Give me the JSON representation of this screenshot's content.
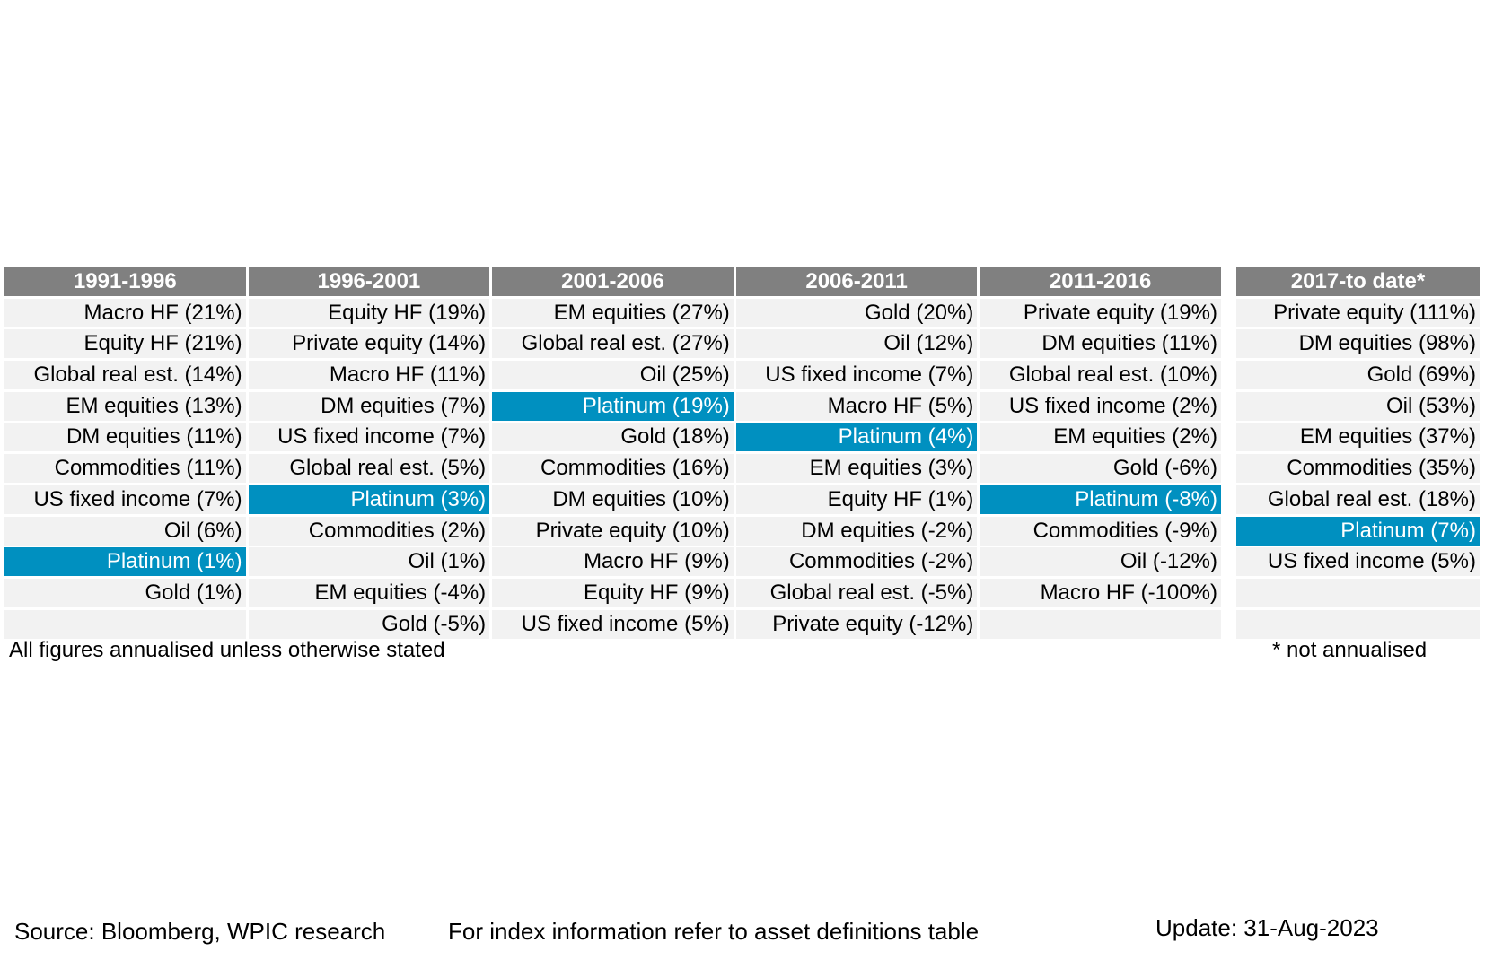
{
  "chart_data": {
    "type": "table",
    "columns": [
      {
        "header": "1991-1996",
        "rows": [
          {
            "asset": "Macro HF",
            "value": 21
          },
          {
            "asset": "Equity HF",
            "value": 21
          },
          {
            "asset": "Global real est.",
            "value": 14
          },
          {
            "asset": "EM equities",
            "value": 13
          },
          {
            "asset": "DM equities",
            "value": 11
          },
          {
            "asset": "Commodities",
            "value": 11
          },
          {
            "asset": "US fixed income",
            "value": 7
          },
          {
            "asset": "Oil",
            "value": 6
          },
          {
            "asset": "Platinum",
            "value": 1,
            "highlight": true
          },
          {
            "asset": "Gold",
            "value": 1
          }
        ]
      },
      {
        "header": "1996-2001",
        "rows": [
          {
            "asset": "Equity HF",
            "value": 19
          },
          {
            "asset": "Private equity",
            "value": 14
          },
          {
            "asset": "Macro HF",
            "value": 11
          },
          {
            "asset": "DM equities",
            "value": 7
          },
          {
            "asset": "US fixed income",
            "value": 7
          },
          {
            "asset": "Global real est.",
            "value": 5
          },
          {
            "asset": "Platinum",
            "value": 3,
            "highlight": true
          },
          {
            "asset": "Commodities",
            "value": 2
          },
          {
            "asset": "Oil",
            "value": 1
          },
          {
            "asset": "EM equities",
            "value": -4
          },
          {
            "asset": "Gold",
            "value": -5
          }
        ]
      },
      {
        "header": "2001-2006",
        "rows": [
          {
            "asset": "EM equities",
            "value": 27
          },
          {
            "asset": "Global real est.",
            "value": 27
          },
          {
            "asset": "Oil",
            "value": 25
          },
          {
            "asset": "Platinum",
            "value": 19,
            "highlight": true
          },
          {
            "asset": "Gold",
            "value": 18
          },
          {
            "asset": "Commodities",
            "value": 16
          },
          {
            "asset": "DM equities",
            "value": 10
          },
          {
            "asset": "Private equity",
            "value": 10
          },
          {
            "asset": "Macro HF",
            "value": 9
          },
          {
            "asset": "Equity HF",
            "value": 9
          },
          {
            "asset": "US fixed income",
            "value": 5
          }
        ]
      },
      {
        "header": "2006-2011",
        "rows": [
          {
            "asset": "Gold",
            "value": 20
          },
          {
            "asset": "Oil",
            "value": 12
          },
          {
            "asset": "US fixed income",
            "value": 7
          },
          {
            "asset": "Macro HF",
            "value": 5
          },
          {
            "asset": "Platinum",
            "value": 4,
            "highlight": true
          },
          {
            "asset": "EM equities",
            "value": 3
          },
          {
            "asset": "Equity HF",
            "value": 1
          },
          {
            "asset": "DM equities",
            "value": -2
          },
          {
            "asset": "Commodities",
            "value": -2
          },
          {
            "asset": "Global real est.",
            "value": -5
          },
          {
            "asset": "Private equity",
            "value": -12
          }
        ]
      },
      {
        "header": "2011-2016",
        "rows": [
          {
            "asset": "Private equity",
            "value": 19
          },
          {
            "asset": "DM equities",
            "value": 11
          },
          {
            "asset": "Global real est.",
            "value": 10
          },
          {
            "asset": "US fixed income",
            "value": 2
          },
          {
            "asset": "EM equities",
            "value": 2
          },
          {
            "asset": "Gold",
            "value": -6
          },
          {
            "asset": "Platinum",
            "value": -8,
            "highlight": true
          },
          {
            "asset": "Commodities",
            "value": -9
          },
          {
            "asset": "Oil",
            "value": -12
          },
          {
            "asset": "Macro HF",
            "value": -100
          }
        ]
      },
      {
        "header": "2017-to date*",
        "rows": [
          {
            "asset": "Private equity",
            "value": 111
          },
          {
            "asset": "DM equities",
            "value": 98
          },
          {
            "asset": "Gold",
            "value": 69
          },
          {
            "asset": "Oil",
            "value": 53
          },
          {
            "asset": "EM equities",
            "value": 37
          },
          {
            "asset": "Commodities",
            "value": 35
          },
          {
            "asset": "Global real est.",
            "value": 18
          },
          {
            "asset": "Platinum",
            "value": 7,
            "highlight": true
          },
          {
            "asset": "US fixed income",
            "value": 5
          }
        ]
      }
    ],
    "row_count": 11
  },
  "notes": {
    "annualised": "All figures annualised unless otherwise stated",
    "not_annualised": "* not annualised"
  },
  "footer": {
    "source": "Source: Bloomberg, WPIC research",
    "index_info": "For index information refer to asset definitions table",
    "update": "Update: 31-Aug-2023"
  },
  "colors": {
    "header_bg": "#808080",
    "cell_bg": "#f2f2f2",
    "highlight": "#0090c0"
  }
}
